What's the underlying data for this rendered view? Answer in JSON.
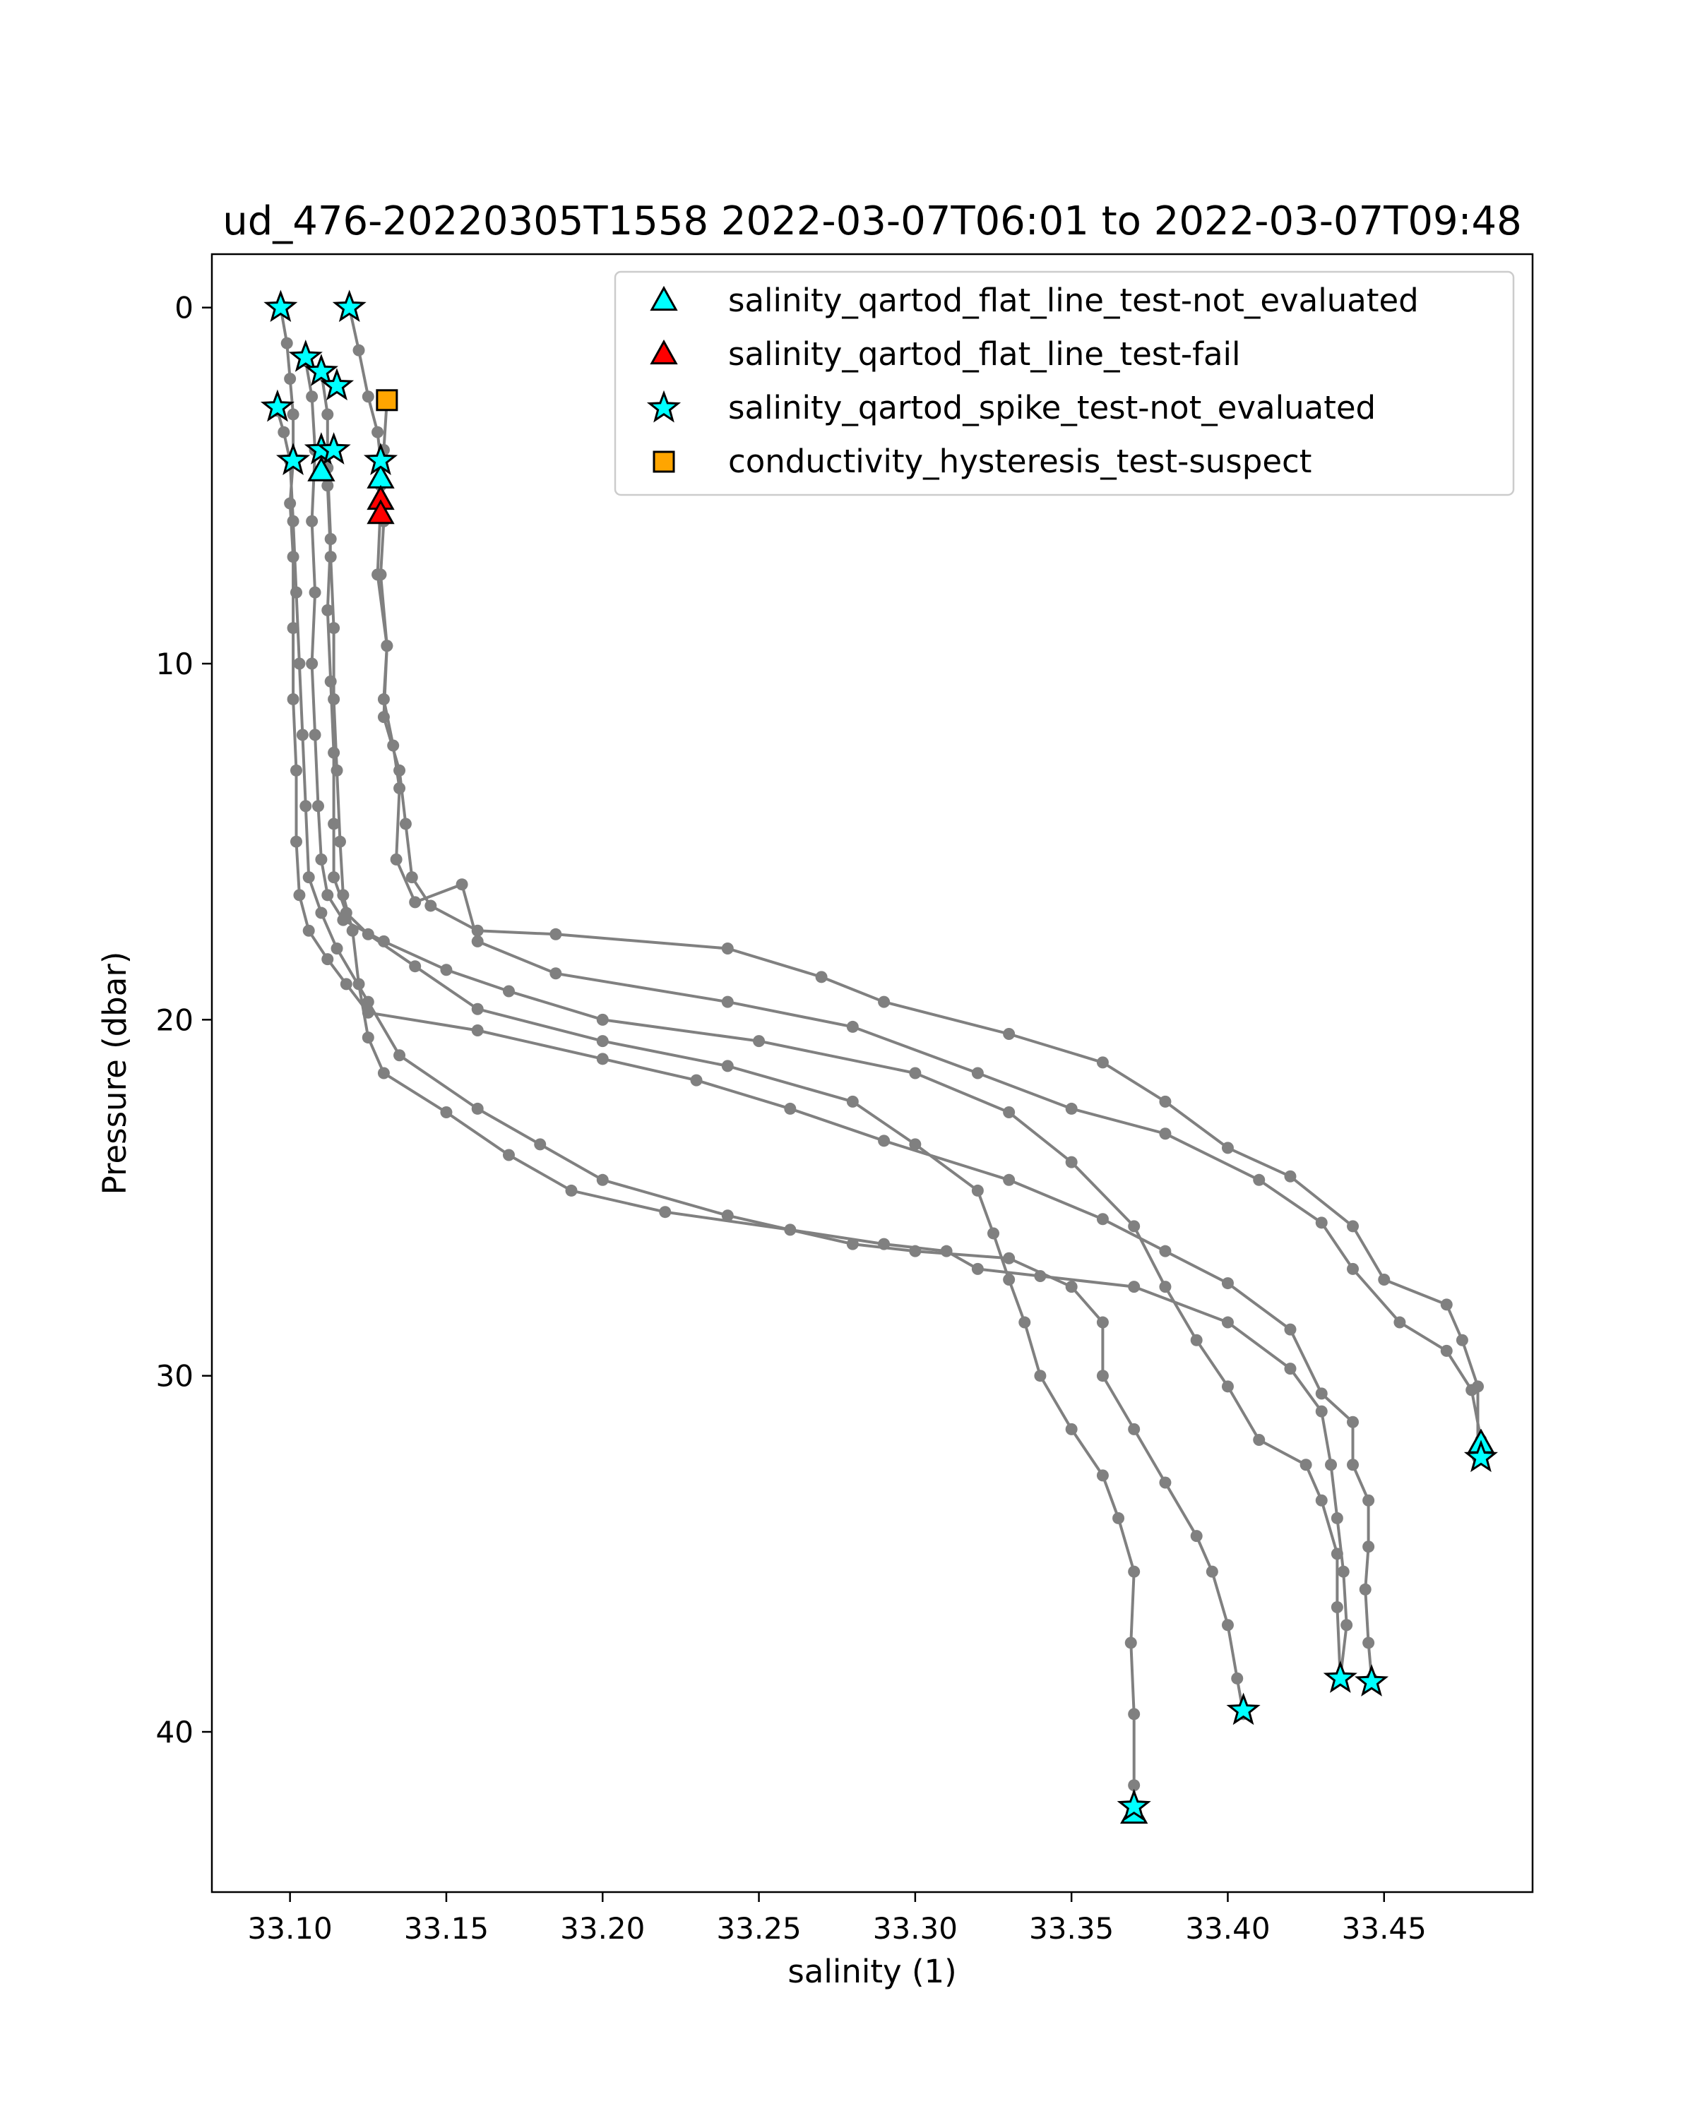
{
  "chart_data": {
    "type": "scatter",
    "title": "ud_476-20220305T1558 2022-03-07T06:01 to 2022-03-07T09:48",
    "xlabel": "salinity (1)",
    "ylabel": "Pressure (dbar)",
    "xlim": [
      33.075,
      33.4975
    ],
    "ylim": [
      44.5,
      -1.5
    ],
    "y_inverted": true,
    "xticks": [
      "33.10",
      "33.15",
      "33.20",
      "33.25",
      "33.30",
      "33.35",
      "33.40",
      "33.45"
    ],
    "xtick_values": [
      33.1,
      33.15,
      33.2,
      33.25,
      33.3,
      33.35,
      33.4,
      33.45
    ],
    "yticks": [
      "0",
      "10",
      "20",
      "30",
      "40"
    ],
    "ytick_values": [
      0,
      10,
      20,
      30,
      40
    ],
    "grid": false,
    "legend_position": "top-right",
    "colors": {
      "profile": "#808080",
      "flat_line_not_evaluated": "#00ffff",
      "flat_line_fail": "#ff0000",
      "spike_not_evaluated": "#00ffff",
      "hysteresis_suspect": "#ffa500"
    },
    "profiles": [
      {
        "points": [
          [
            33.097,
            0
          ],
          [
            33.099,
            1.0
          ],
          [
            33.1,
            2.0
          ],
          [
            33.101,
            3.0
          ],
          [
            33.101,
            4.3
          ],
          [
            33.1,
            5.5
          ],
          [
            33.101,
            7.0
          ],
          [
            33.101,
            9.0
          ],
          [
            33.101,
            11.0
          ],
          [
            33.102,
            13.0
          ],
          [
            33.102,
            15.0
          ],
          [
            33.103,
            16.5
          ],
          [
            33.106,
            17.5
          ],
          [
            33.112,
            18.3
          ],
          [
            33.118,
            19.0
          ],
          [
            33.125,
            19.8
          ],
          [
            33.16,
            20.3
          ],
          [
            33.2,
            21.1
          ],
          [
            33.23,
            21.7
          ],
          [
            33.26,
            22.5
          ],
          [
            33.29,
            23.4
          ],
          [
            33.33,
            24.5
          ],
          [
            33.36,
            25.6
          ],
          [
            33.38,
            26.5
          ],
          [
            33.4,
            27.4
          ],
          [
            33.42,
            28.7
          ],
          [
            33.43,
            30.5
          ],
          [
            33.44,
            31.3
          ],
          [
            33.44,
            32.5
          ],
          [
            33.445,
            33.5
          ],
          [
            33.445,
            34.8
          ],
          [
            33.444,
            36.0
          ],
          [
            33.445,
            37.5
          ],
          [
            33.446,
            38.5
          ]
        ]
      },
      {
        "points": [
          [
            33.119,
            0
          ],
          [
            33.122,
            1.2
          ],
          [
            33.125,
            2.5
          ],
          [
            33.128,
            3.5
          ],
          [
            33.129,
            4.3
          ],
          [
            33.129,
            5.5
          ],
          [
            33.128,
            7.5
          ],
          [
            33.131,
            9.5
          ],
          [
            33.13,
            11.5
          ],
          [
            33.135,
            13.0
          ],
          [
            33.137,
            14.5
          ],
          [
            33.139,
            16.0
          ],
          [
            33.145,
            16.8
          ],
          [
            33.16,
            17.5
          ],
          [
            33.185,
            17.6
          ],
          [
            33.24,
            18.0
          ],
          [
            33.27,
            18.8
          ],
          [
            33.29,
            19.5
          ],
          [
            33.33,
            20.4
          ],
          [
            33.36,
            21.2
          ],
          [
            33.38,
            22.3
          ],
          [
            33.4,
            23.6
          ],
          [
            33.42,
            24.4
          ],
          [
            33.44,
            25.8
          ],
          [
            33.45,
            27.3
          ],
          [
            33.47,
            28.0
          ],
          [
            33.475,
            29.0
          ],
          [
            33.48,
            30.3
          ],
          [
            33.48,
            32.0
          ]
        ]
      },
      {
        "points": [
          [
            33.131,
            2.6
          ],
          [
            33.13,
            4.0
          ],
          [
            33.129,
            5.0
          ],
          [
            33.13,
            6.0
          ],
          [
            33.129,
            7.5
          ],
          [
            33.131,
            9.5
          ],
          [
            33.13,
            11.0
          ],
          [
            33.133,
            12.3
          ],
          [
            33.135,
            13.5
          ],
          [
            33.134,
            15.5
          ],
          [
            33.14,
            16.7
          ],
          [
            33.155,
            16.2
          ],
          [
            33.16,
            17.8
          ],
          [
            33.185,
            18.7
          ],
          [
            33.24,
            19.5
          ],
          [
            33.28,
            20.2
          ],
          [
            33.32,
            21.5
          ],
          [
            33.35,
            22.5
          ],
          [
            33.38,
            23.2
          ],
          [
            33.41,
            24.5
          ],
          [
            33.43,
            25.7
          ],
          [
            33.44,
            27.0
          ],
          [
            33.455,
            28.5
          ],
          [
            33.47,
            29.3
          ],
          [
            33.478,
            30.4
          ],
          [
            33.481,
            31.8
          ],
          [
            33.48,
            32.3
          ]
        ]
      },
      {
        "points": [
          [
            33.105,
            1.5
          ],
          [
            33.107,
            2.5
          ],
          [
            33.108,
            4.0
          ],
          [
            33.107,
            6.0
          ],
          [
            33.108,
            8.0
          ],
          [
            33.107,
            10.0
          ],
          [
            33.108,
            12.0
          ],
          [
            33.109,
            14.0
          ],
          [
            33.11,
            15.5
          ],
          [
            33.112,
            16.5
          ],
          [
            33.117,
            17.2
          ],
          [
            33.13,
            17.8
          ],
          [
            33.15,
            18.6
          ],
          [
            33.17,
            19.2
          ],
          [
            33.2,
            20.0
          ],
          [
            33.25,
            20.6
          ],
          [
            33.3,
            21.5
          ],
          [
            33.33,
            22.6
          ],
          [
            33.35,
            24.0
          ],
          [
            33.37,
            25.8
          ],
          [
            33.38,
            27.5
          ],
          [
            33.39,
            29.0
          ],
          [
            33.4,
            30.3
          ],
          [
            33.41,
            31.8
          ],
          [
            33.425,
            32.5
          ],
          [
            33.43,
            33.5
          ],
          [
            33.435,
            35.0
          ],
          [
            33.435,
            36.5
          ],
          [
            33.436,
            38.5
          ]
        ]
      },
      {
        "points": [
          [
            33.11,
            1.8
          ],
          [
            33.112,
            3.0
          ],
          [
            33.112,
            4.5
          ],
          [
            33.113,
            6.5
          ],
          [
            33.112,
            8.5
          ],
          [
            33.113,
            10.5
          ],
          [
            33.114,
            12.5
          ],
          [
            33.114,
            14.5
          ],
          [
            33.114,
            16.0
          ],
          [
            33.118,
            17.0
          ],
          [
            33.125,
            17.6
          ],
          [
            33.14,
            18.5
          ],
          [
            33.16,
            19.7
          ],
          [
            33.2,
            20.6
          ],
          [
            33.24,
            21.3
          ],
          [
            33.28,
            22.3
          ],
          [
            33.3,
            23.5
          ],
          [
            33.32,
            24.8
          ],
          [
            33.325,
            26.0
          ],
          [
            33.33,
            27.3
          ],
          [
            33.335,
            28.5
          ],
          [
            33.34,
            30.0
          ],
          [
            33.35,
            31.5
          ],
          [
            33.36,
            32.8
          ],
          [
            33.365,
            34.0
          ],
          [
            33.37,
            35.5
          ],
          [
            33.369,
            37.5
          ],
          [
            33.37,
            39.5
          ],
          [
            33.37,
            41.5
          ],
          [
            33.37,
            42.3
          ]
        ]
      },
      {
        "points": [
          [
            33.096,
            2.9
          ],
          [
            33.098,
            3.5
          ],
          [
            33.1,
            4.3
          ],
          [
            33.101,
            6.0
          ],
          [
            33.102,
            8.0
          ],
          [
            33.103,
            10.0
          ],
          [
            33.104,
            12.0
          ],
          [
            33.105,
            14.0
          ],
          [
            33.106,
            16.0
          ],
          [
            33.11,
            17.0
          ],
          [
            33.115,
            18.0
          ],
          [
            33.125,
            19.5
          ],
          [
            33.135,
            21.0
          ],
          [
            33.16,
            22.5
          ],
          [
            33.18,
            23.5
          ],
          [
            33.2,
            24.5
          ],
          [
            33.24,
            25.5
          ],
          [
            33.28,
            26.3
          ],
          [
            33.3,
            26.5
          ],
          [
            33.33,
            26.7
          ],
          [
            33.35,
            27.5
          ],
          [
            33.36,
            28.5
          ],
          [
            33.36,
            30.0
          ],
          [
            33.37,
            31.5
          ],
          [
            33.38,
            33.0
          ],
          [
            33.39,
            34.5
          ],
          [
            33.395,
            35.5
          ],
          [
            33.4,
            37.0
          ],
          [
            33.403,
            38.5
          ],
          [
            33.405,
            39.5
          ]
        ]
      },
      {
        "points": [
          [
            33.11,
            4.0
          ],
          [
            33.112,
            5.0
          ],
          [
            33.113,
            7.0
          ],
          [
            33.114,
            9.0
          ],
          [
            33.114,
            11.0
          ],
          [
            33.115,
            13.0
          ],
          [
            33.116,
            15.0
          ],
          [
            33.117,
            16.5
          ],
          [
            33.12,
            17.5
          ],
          [
            33.122,
            19.0
          ],
          [
            33.125,
            20.5
          ],
          [
            33.13,
            21.5
          ],
          [
            33.15,
            22.6
          ],
          [
            33.17,
            23.8
          ],
          [
            33.19,
            24.8
          ],
          [
            33.22,
            25.4
          ],
          [
            33.26,
            25.9
          ],
          [
            33.29,
            26.3
          ],
          [
            33.31,
            26.5
          ],
          [
            33.32,
            27.0
          ],
          [
            33.34,
            27.2
          ],
          [
            33.37,
            27.5
          ],
          [
            33.4,
            28.5
          ],
          [
            33.42,
            29.8
          ],
          [
            33.43,
            31.0
          ],
          [
            33.433,
            32.5
          ],
          [
            33.435,
            34.0
          ],
          [
            33.437,
            35.5
          ],
          [
            33.438,
            37.0
          ],
          [
            33.436,
            38.5
          ]
        ]
      }
    ],
    "flags": {
      "salinity_qartod_flat_line_test-not_evaluated": [
        [
          33.11,
          4.6
        ],
        [
          33.129,
          4.8
        ],
        [
          33.481,
          31.9
        ],
        [
          33.37,
          42.3
        ]
      ],
      "salinity_qartod_flat_line_test-fail": [
        [
          33.129,
          5.4
        ],
        [
          33.129,
          5.8
        ]
      ],
      "salinity_qartod_spike_test-not_evaluated": [
        [
          33.097,
          0
        ],
        [
          33.119,
          0
        ],
        [
          33.105,
          1.4
        ],
        [
          33.11,
          1.8
        ],
        [
          33.115,
          2.2
        ],
        [
          33.096,
          2.8
        ],
        [
          33.101,
          4.3
        ],
        [
          33.11,
          4.0
        ],
        [
          33.114,
          4.0
        ],
        [
          33.129,
          4.3
        ],
        [
          33.481,
          32.3
        ],
        [
          33.436,
          38.5
        ],
        [
          33.446,
          38.6
        ],
        [
          33.405,
          39.4
        ],
        [
          33.37,
          42.1
        ]
      ],
      "conductivity_hysteresis_test-suspect": [
        [
          33.131,
          2.6
        ]
      ]
    },
    "legend": [
      {
        "label": "salinity_qartod_flat_line_test-not_evaluated",
        "marker": "triangle",
        "color": "#00ffff"
      },
      {
        "label": "salinity_qartod_flat_line_test-fail",
        "marker": "triangle",
        "color": "#ff0000"
      },
      {
        "label": "salinity_qartod_spike_test-not_evaluated",
        "marker": "star",
        "color": "#00ffff"
      },
      {
        "label": "conductivity_hysteresis_test-suspect",
        "marker": "square",
        "color": "#ffa500"
      }
    ]
  }
}
